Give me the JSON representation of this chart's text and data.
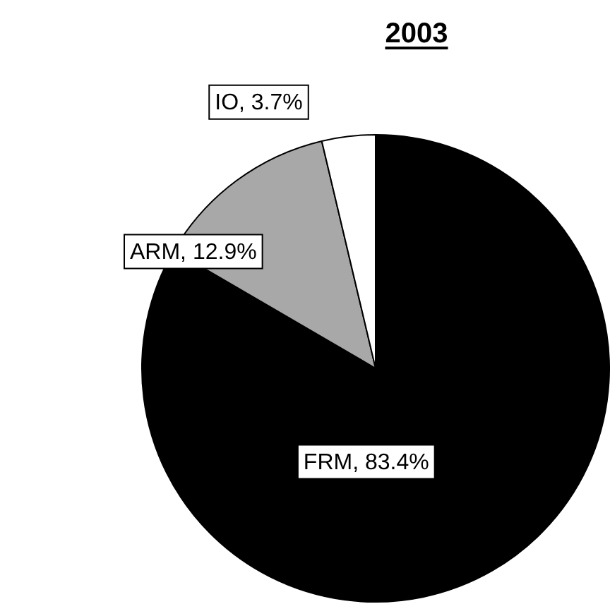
{
  "chart_data": {
    "type": "pie",
    "title": "2003",
    "categories": [
      "FRM",
      "ARM",
      "IO"
    ],
    "values": [
      83.4,
      12.9,
      3.7
    ],
    "colors": [
      "#000000",
      "#a8a8a8",
      "#ffffff"
    ],
    "value_labels": [
      "83.4%",
      "12.9%",
      "3.7%"
    ],
    "legend": false
  }
}
